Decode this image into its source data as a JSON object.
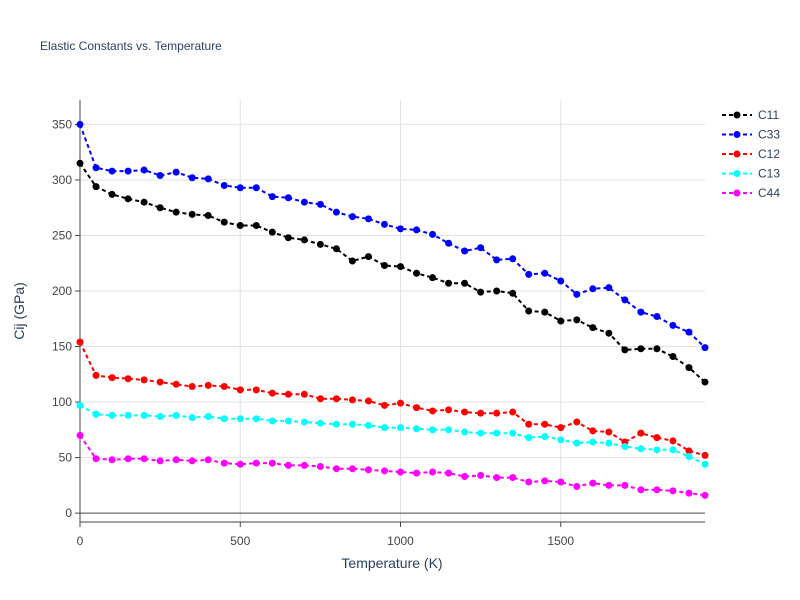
{
  "chart_data": {
    "type": "line",
    "title": "Elastic Constants vs. Temperature",
    "xlabel": "Temperature (K)",
    "ylabel": "Cij (GPa)",
    "xlim": [
      0,
      1950
    ],
    "ylim": [
      -8,
      372
    ],
    "xticks": [
      0,
      500,
      1000,
      1500
    ],
    "yticks": [
      0,
      50,
      100,
      150,
      200,
      250,
      300,
      350
    ],
    "grid": true,
    "legend_position": "right",
    "x": [
      0,
      50,
      100,
      150,
      200,
      250,
      300,
      350,
      400,
      450,
      500,
      550,
      600,
      650,
      700,
      750,
      800,
      850,
      900,
      950,
      1000,
      1050,
      1100,
      1150,
      1200,
      1250,
      1300,
      1350,
      1400,
      1450,
      1500,
      1550,
      1600,
      1650,
      1700,
      1750,
      1800,
      1850,
      1900,
      1950
    ],
    "series": [
      {
        "name": "C11",
        "color": "#000000",
        "values": [
          315,
          294,
          287,
          283,
          280,
          275,
          271,
          269,
          268,
          262,
          259,
          259,
          253,
          248,
          246,
          242,
          238,
          227,
          231,
          223,
          222,
          216,
          212,
          207,
          207,
          199,
          200,
          198,
          182,
          181,
          173,
          174,
          167,
          162,
          147,
          148,
          148,
          141,
          131,
          118
        ]
      },
      {
        "name": "C33",
        "color": "#0000ff",
        "values": [
          350,
          311,
          308,
          308,
          309,
          304,
          307,
          302,
          301,
          295,
          293,
          293,
          285,
          284,
          280,
          278,
          271,
          267,
          265,
          260,
          256,
          255,
          251,
          243,
          236,
          239,
          228,
          229,
          215,
          216,
          209,
          197,
          202,
          203,
          192,
          181,
          177,
          169,
          163,
          149
        ]
      },
      {
        "name": "C12",
        "color": "#ff0000",
        "values": [
          154,
          124,
          122,
          121,
          120,
          118,
          116,
          114,
          115,
          114,
          111,
          111,
          108,
          107,
          107,
          103,
          103,
          102,
          101,
          97,
          99,
          95,
          92,
          93,
          91,
          90,
          90,
          91,
          80,
          80,
          77,
          82,
          74,
          73,
          64,
          72,
          68,
          65,
          56,
          52
        ]
      },
      {
        "name": "C13",
        "color": "#00ffff",
        "values": [
          97,
          89,
          88,
          88,
          88,
          87,
          88,
          86,
          87,
          85,
          85,
          85,
          83,
          83,
          82,
          81,
          80,
          80,
          79,
          77,
          77,
          76,
          75,
          75,
          73,
          72,
          72,
          72,
          68,
          69,
          66,
          63,
          64,
          63,
          60,
          58,
          57,
          57,
          51,
          44
        ]
      },
      {
        "name": "C44",
        "color": "#ff00ff",
        "values": [
          70,
          49,
          48,
          49,
          49,
          47,
          48,
          47,
          48,
          45,
          44,
          45,
          45,
          43,
          43,
          42,
          40,
          40,
          39,
          38,
          37,
          36,
          37,
          36,
          33,
          34,
          32,
          32,
          28,
          29,
          28,
          24,
          27,
          25,
          25,
          21,
          21,
          20,
          18,
          16
        ]
      }
    ]
  }
}
